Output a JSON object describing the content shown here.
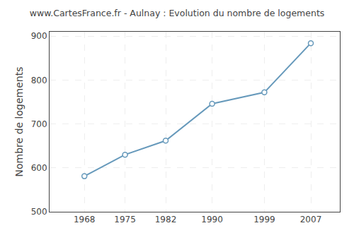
{
  "chart_data": {
    "type": "line",
    "title": "www.CartesFrance.fr - Aulnay : Evolution du nombre de logements",
    "ylabel": "Nombre de logements",
    "x": [
      1968,
      1975,
      1982,
      1990,
      1999,
      2007
    ],
    "values": [
      581,
      630,
      662,
      746,
      772,
      884
    ],
    "xlim": [
      1962,
      2012
    ],
    "xticks": [
      1968,
      1975,
      1982,
      1990,
      1999,
      2007
    ],
    "ylim": [
      500,
      910
    ],
    "yticks": [
      500,
      600,
      700,
      800,
      900
    ],
    "color": "#6699bb",
    "marker": "circle",
    "grid": true
  }
}
